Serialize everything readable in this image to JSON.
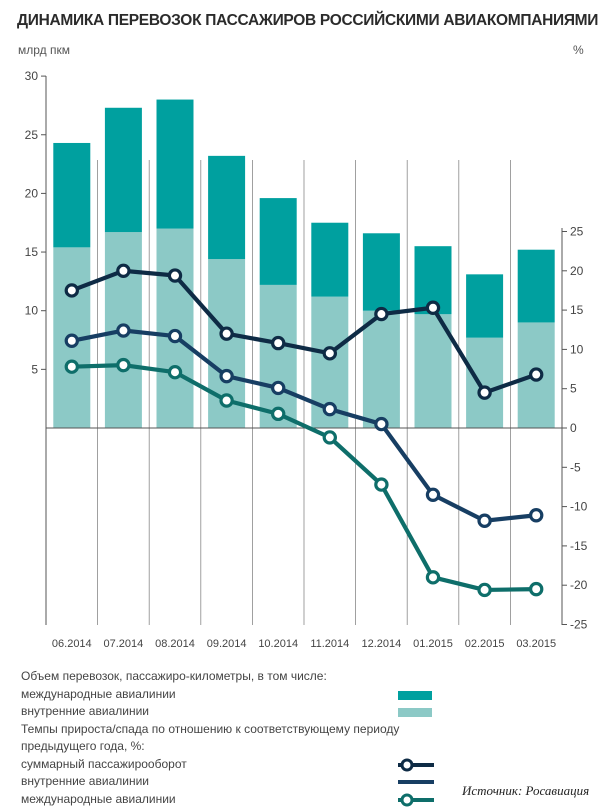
{
  "title": "ДИНАМИКА ПЕРЕВОЗОК ПАССАЖИРОВ РОССИЙСКИМИ АВИАКОМПАНИЯМИ",
  "chart_data": {
    "type": "bar+line",
    "categories": [
      "06.2014",
      "07.2014",
      "08.2014",
      "09.2014",
      "10.2014",
      "11.2014",
      "12.2014",
      "01.2015",
      "02.2015",
      "03.2015"
    ],
    "left_axis": {
      "label": "млрд пкм",
      "ylim": [
        0,
        30
      ],
      "ticks": [
        5,
        10,
        15,
        20,
        25,
        30
      ]
    },
    "right_axis": {
      "label": "%",
      "ylim": [
        -25,
        25
      ],
      "ticks": [
        25,
        20,
        15,
        10,
        5,
        0,
        -5,
        -10,
        -15,
        -20,
        -25
      ]
    },
    "bars": {
      "stacked": true,
      "series": [
        {
          "name": "внутренние авиалинии",
          "color": "#8CC9C6",
          "values": [
            15.4,
            16.7,
            17.0,
            14.4,
            12.2,
            11.2,
            10.0,
            9.7,
            7.7,
            9.0
          ]
        },
        {
          "name": "международные авиалинии",
          "color": "#00A09F",
          "values": [
            8.9,
            10.6,
            11.0,
            8.8,
            7.4,
            6.3,
            6.6,
            5.8,
            5.4,
            6.2
          ]
        }
      ]
    },
    "lines": [
      {
        "name": "суммарный пассажирооборот",
        "color": "#0E2B45",
        "values": [
          17.5,
          20.0,
          19.4,
          12.0,
          10.8,
          9.5,
          14.5,
          15.3,
          4.5,
          6.8
        ]
      },
      {
        "name": "внутренние авиалинии",
        "color": "#173E63",
        "values": [
          11.1,
          12.4,
          11.7,
          6.6,
          5.1,
          2.4,
          0.5,
          -8.5,
          -11.8,
          -11.1
        ]
      },
      {
        "name": "международные авиалинии",
        "color": "#0E6E6A",
        "values": [
          7.8,
          8.0,
          7.1,
          3.5,
          1.8,
          -1.2,
          -7.2,
          -19.0,
          -20.6,
          -20.5
        ]
      }
    ]
  },
  "legend": {
    "volume_header": "Объем перевозок, пассажиро-километры, в том числе:",
    "intl": "международные авиалинии",
    "domestic": "внутренние авиалинии",
    "growth_header": "Темпы прироста/спада по отношению к соответствующему периоду предыдущего года, %:",
    "total": "суммарный пассажирооборот",
    "domestic_growth": "внутренние авиалинии",
    "intl_growth": "международные авиалинии"
  },
  "source": "Источник: Росавиация"
}
